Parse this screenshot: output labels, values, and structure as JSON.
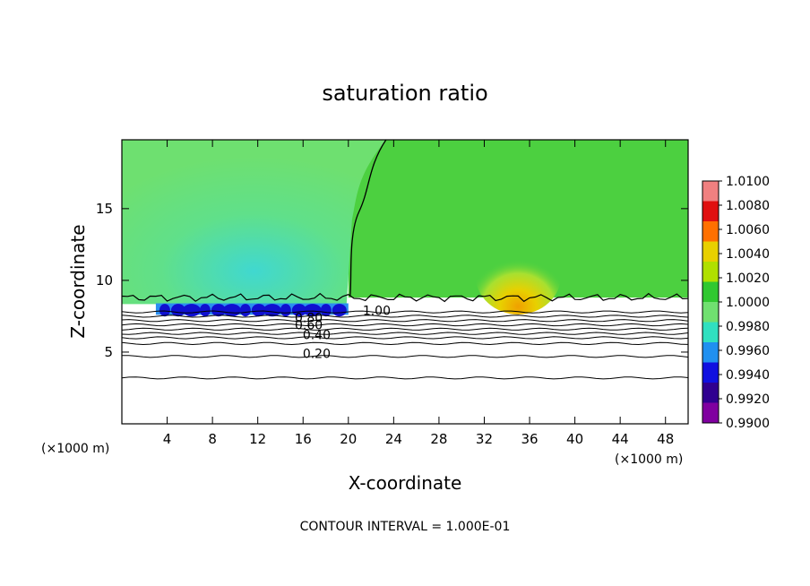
{
  "chart_data": {
    "type": "heatmap",
    "title": "saturation ratio",
    "xlabel": "X-coordinate",
    "ylabel": "Z-coordinate",
    "x_unit": "(×1000 m)",
    "y_unit": "(×1000 m)",
    "xlim": [
      0,
      50
    ],
    "ylim": [
      0,
      19.8
    ],
    "x_ticks": [
      "4",
      "8",
      "12",
      "16",
      "20",
      "24",
      "28",
      "32",
      "36",
      "40",
      "44",
      "48"
    ],
    "y_ticks": [
      "5",
      "10",
      "15"
    ],
    "colorbar": {
      "ticks": [
        "1.0100",
        "1.0080",
        "1.0060",
        "1.0040",
        "1.0020",
        "1.0000",
        "0.9980",
        "0.9960",
        "0.9940",
        "0.9920",
        "0.9900"
      ],
      "colors": [
        "#f08080",
        "#e01010",
        "#ff7000",
        "#e8d000",
        "#b0e000",
        "#30c830",
        "#70e070",
        "#30e0c0",
        "#2090f0",
        "#1010e0",
        "#300090",
        "#8000a0"
      ]
    },
    "field_regions": [
      {
        "name": "west-subsaturated",
        "x": [
          0,
          20
        ],
        "z": [
          7.6,
          19.8
        ],
        "value": 0.9975
      },
      {
        "name": "east-near-saturation",
        "x": [
          20,
          50
        ],
        "z": [
          8.8,
          19.8
        ],
        "value": 1.0005
      },
      {
        "name": "supersaturated-core",
        "x": [
          32,
          38
        ],
        "z": [
          9.0,
          13.0
        ],
        "value": 1.003
      },
      {
        "name": "low-level-minimum",
        "x": [
          3,
          20
        ],
        "z": [
          7.6,
          8.4
        ],
        "value": 0.992
      }
    ],
    "contour_labels": [
      {
        "text": "1.00",
        "x": 22.5,
        "z": 7.6
      },
      {
        "text": "0.80",
        "x": 16.5,
        "z": 7.1
      },
      {
        "text": "0.60",
        "x": 16.5,
        "z": 6.6
      },
      {
        "text": "0.40",
        "x": 17.2,
        "z": 5.9
      },
      {
        "text": "0.20",
        "x": 17.2,
        "z": 4.6
      }
    ],
    "contour_levels_z": [
      3.2,
      4.7,
      5.6,
      6.0,
      6.3,
      6.6,
      6.9,
      7.2,
      7.5,
      7.8
    ],
    "footer": "CONTOUR INTERVAL = 1.000E-01"
  }
}
